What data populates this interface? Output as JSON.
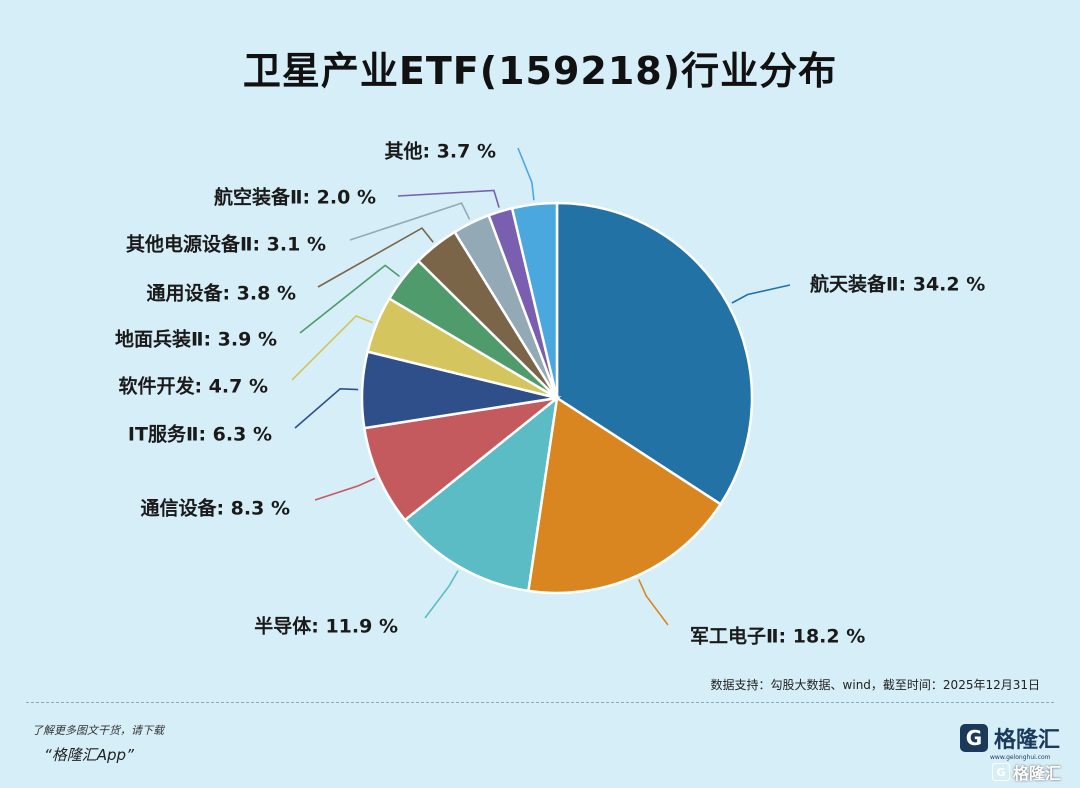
{
  "chart_data": {
    "type": "pie",
    "title": "卫星产业ETF(159218)行业分布",
    "slices": [
      {
        "label": "航天装备Ⅱ",
        "value": 34.2,
        "display": "34.2 %",
        "color": "#2372a6"
      },
      {
        "label": "军工电子Ⅱ",
        "value": 18.2,
        "display": "18.2 %",
        "color": "#d98620"
      },
      {
        "label": "半导体",
        "value": 11.9,
        "display": "11.9 %",
        "color": "#5bbcc5"
      },
      {
        "label": "通信设备",
        "value": 8.3,
        "display": "8.3 %",
        "color": "#c45a5e"
      },
      {
        "label": "IT服务Ⅱ",
        "value": 6.3,
        "display": "6.3 %",
        "color": "#2f4f8a"
      },
      {
        "label": "软件开发",
        "value": 4.7,
        "display": "4.7 %",
        "color": "#d5c55e"
      },
      {
        "label": "地面兵装Ⅱ",
        "value": 3.9,
        "display": "3.9 %",
        "color": "#4f9b6b"
      },
      {
        "label": "通用设备",
        "value": 3.8,
        "display": "3.8 %",
        "color": "#7b6548"
      },
      {
        "label": "其他电源设备Ⅱ",
        "value": 3.1,
        "display": "3.1 %",
        "color": "#93aab6"
      },
      {
        "label": "航空装备Ⅱ",
        "value": 2.0,
        "display": "2.0 %",
        "color": "#7a5fb0"
      },
      {
        "label": "其他",
        "value": 3.7,
        "display": "3.7 %",
        "color": "#4aa8de"
      }
    ]
  },
  "footer": {
    "source": "数据支持：勾股大数据、wind，截至时间：2025年12月31日",
    "promo_line1": "了解更多图文干货，请下载",
    "promo_line2": "“格隆汇App”",
    "brand_logo": "G",
    "brand_name": "格隆汇",
    "brand_sub": "www.gelonghui.com",
    "watermark_name": "格隆汇"
  }
}
